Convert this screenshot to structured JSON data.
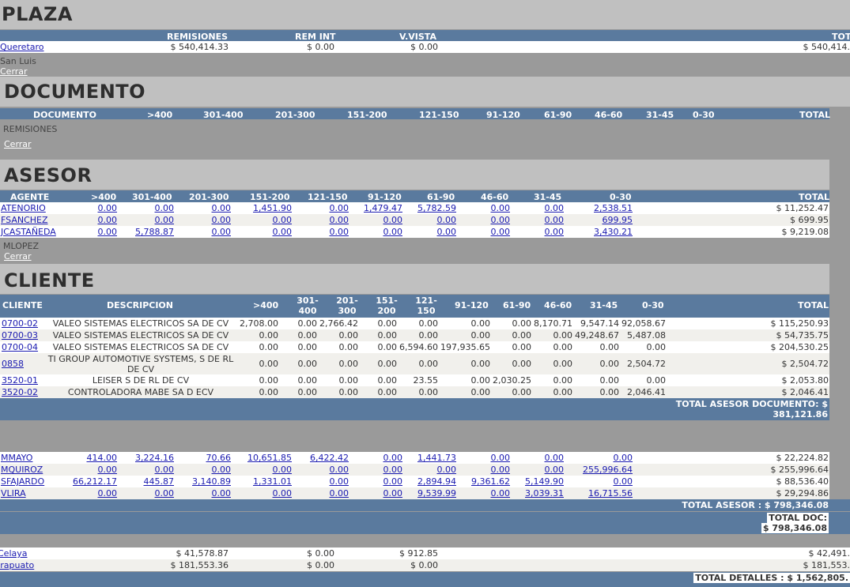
{
  "plaza": {
    "title": "PLAZA",
    "headers": [
      "REMISIONES",
      "REM INT",
      "V.VISTA",
      "TOT"
    ],
    "rows": [
      {
        "name": "Queretaro",
        "remisiones": "$ 540,414.33",
        "remint": "$ 0.00",
        "vvista": "$ 0.00",
        "total": "$ 540,414."
      }
    ],
    "sub_label": "San Luis",
    "cerrar": "Cerrar"
  },
  "documento": {
    "title": "DOCUMENTO",
    "headers": [
      "DOCUMENTO",
      ">400",
      "301-400",
      "201-300",
      "151-200",
      "121-150",
      "91-120",
      "61-90",
      "46-60",
      "31-45",
      "0-30",
      "TOTAL"
    ],
    "sub_label": "REMISIONES",
    "cerrar": "Cerrar"
  },
  "asesor": {
    "title": "ASESOR",
    "headers": [
      "AGENTE",
      ">400",
      "301-400",
      "201-300",
      "151-200",
      "121-150",
      "91-120",
      "61-90",
      "46-60",
      "31-45",
      "0-30",
      "TOTAL"
    ],
    "rows": [
      {
        "name": "ATENORIO",
        "vals": [
          "0.00",
          "0.00",
          "0.00",
          "1,451.90",
          "0.00",
          "1,479.47",
          "5,782.59",
          "0.00",
          "0.00",
          "2,538.51"
        ],
        "total": "$ 11,252.47"
      },
      {
        "name": "FSANCHEZ",
        "vals": [
          "0.00",
          "0.00",
          "0.00",
          "0.00",
          "0.00",
          "0.00",
          "0.00",
          "0.00",
          "0.00",
          "699.95"
        ],
        "total": "$ 699.95"
      },
      {
        "name": "JCASTAÑEDA",
        "vals": [
          "0.00",
          "5,788.87",
          "0.00",
          "0.00",
          "0.00",
          "0.00",
          "0.00",
          "0.00",
          "0.00",
          "3,430.21"
        ],
        "total": "$ 9,219.08"
      }
    ],
    "sub_label": "MLOPEZ",
    "cerrar": "Cerrar"
  },
  "cliente": {
    "title": "CLIENTE",
    "headers": [
      "CLIENTE",
      "DESCRIPCION",
      ">400",
      "301-\n400",
      "201-\n300",
      "151-\n200",
      "121-\n150",
      "91-120",
      "61-90",
      "46-60",
      "31-45",
      "0-30",
      "TOTAL"
    ],
    "rows": [
      {
        "id": "0700-02",
        "desc": "VALEO SISTEMAS ELECTRICOS SA DE CV",
        "vals": [
          "2,708.00",
          "0.00",
          "2,766.42",
          "0.00",
          "0.00",
          "0.00",
          "0.00",
          "8,170.71",
          "9,547.14",
          "92,058.67"
        ],
        "total": "$ 115,250.93"
      },
      {
        "id": "0700-03",
        "desc": "VALEO SISTEMAS ELECTRICOS SA DE CV",
        "vals": [
          "0.00",
          "0.00",
          "0.00",
          "0.00",
          "0.00",
          "0.00",
          "0.00",
          "0.00",
          "49,248.67",
          "5,487.08"
        ],
        "total": "$ 54,735.75"
      },
      {
        "id": "0700-04",
        "desc": "VALEO SISTEMAS ELECTRICOS SA DE CV",
        "vals": [
          "0.00",
          "0.00",
          "0.00",
          "0.00",
          "6,594.60",
          "197,935.65",
          "0.00",
          "0.00",
          "0.00",
          "0.00"
        ],
        "total": "$ 204,530.25"
      },
      {
        "id": "0858",
        "desc": "TI GROUP AUTOMOTIVE SYSTEMS, S DE RL DE CV",
        "vals": [
          "0.00",
          "0.00",
          "0.00",
          "0.00",
          "0.00",
          "0.00",
          "0.00",
          "0.00",
          "0.00",
          "2,504.72"
        ],
        "total": "$ 2,504.72"
      },
      {
        "id": "3520-01",
        "desc": "LEISER S DE RL DE CV",
        "vals": [
          "0.00",
          "0.00",
          "0.00",
          "0.00",
          "23.55",
          "0.00",
          "2,030.25",
          "0.00",
          "0.00",
          "0.00"
        ],
        "total": "$ 2,053.80"
      },
      {
        "id": "3520-02",
        "desc": "CONTROLADORA MABE SA D ECV",
        "vals": [
          "0.00",
          "0.00",
          "0.00",
          "0.00",
          "0.00",
          "0.00",
          "0.00",
          "0.00",
          "0.00",
          "2,046.41"
        ],
        "total": "$ 2,046.41"
      }
    ],
    "total_label": "TOTAL ASESOR DOCUMENTO: $",
    "total_value": "381,121.86"
  },
  "asesor2": {
    "rows": [
      {
        "name": "MMAYO",
        "vals": [
          "414.00",
          "3,224.16",
          "70.66",
          "10,651.85",
          "6,422.42",
          "0.00",
          "1,441.73",
          "0.00",
          "0.00",
          "0.00"
        ],
        "total": "$ 22,224.82"
      },
      {
        "name": "MQUIROZ",
        "vals": [
          "0.00",
          "0.00",
          "0.00",
          "0.00",
          "0.00",
          "0.00",
          "0.00",
          "0.00",
          "0.00",
          "255,996.64"
        ],
        "total": "$ 255,996.64"
      },
      {
        "name": "SFAJARDO",
        "vals": [
          "66,212.17",
          "445.87",
          "3,140.89",
          "1,331.01",
          "0.00",
          "0.00",
          "2,894.94",
          "9,361.62",
          "5,149.90",
          "0.00"
        ],
        "total": "$ 88,536.40"
      },
      {
        "name": "VLIRA",
        "vals": [
          "0.00",
          "0.00",
          "0.00",
          "0.00",
          "0.00",
          "0.00",
          "9,539.99",
          "0.00",
          "3,039.31",
          "16,715.56"
        ],
        "total": "$ 29,294.86"
      }
    ],
    "total_asesor": "TOTAL ASESOR : $ 798,346.08",
    "total_doc_label": "TOTAL DOC:",
    "total_doc_value": "$ 798,346.08"
  },
  "plaza2": {
    "rows": [
      {
        "name": "Celaya",
        "remisiones": "$ 41,578.87",
        "remint": "$ 0.00",
        "vvista": "$ 912.85",
        "total": "$ 42,491."
      },
      {
        "name": "Irapuato",
        "remisiones": "$ 181,553.36",
        "remint": "$ 0.00",
        "vvista": "$ 0.00",
        "total": "$ 181,553."
      }
    ],
    "total_detalles": "TOTAL DETALLES : $ 1,562,805."
  }
}
